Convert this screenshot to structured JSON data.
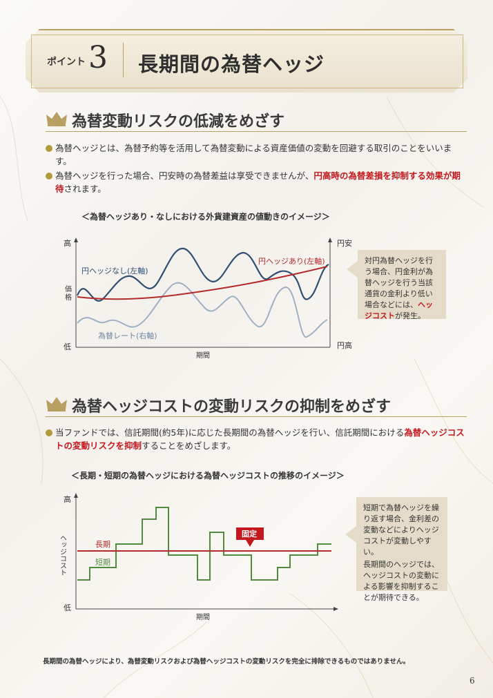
{
  "header": {
    "point_label": "ポイント",
    "point_number": "3",
    "title": "長期間の為替ヘッジ"
  },
  "section1": {
    "title": "為替変動リスクの低減をめざす",
    "bullet1": "為替ヘッジとは、為替予約等を活用して為替変動による資産価値の変動を回避する取引のことをいいます。",
    "bullet2_pre": "為替ヘッジを行った場合、円安時の為替差益は享受できませんが、",
    "bullet2_em": "円高時の為替差損を抑制する効果が期待",
    "bullet2_post": "されます。",
    "chart_caption": "＜為替ヘッジあり・なしにおける外貨建資産の値動きのイメージ＞",
    "callout_pre": "対円為替ヘッジを行う場合、円金利が為替ヘッジを行う当該通貨の金利より低い場合などには、",
    "callout_em": "ヘッジコスト",
    "callout_post": "が発生。"
  },
  "section2": {
    "title": "為替ヘッジコストの変動リスクの抑制をめざす",
    "bullet_pre": "当ファンドでは、信託期間(約5年)に応じた長期間の為替ヘッジを行い、信託期間における",
    "bullet_em": "為替ヘッジコストの変動リスクを抑制",
    "bullet_post": "することをめざします。",
    "chart_caption": "＜長期・短期の為替ヘッジにおける為替ヘッジコストの推移のイメージ＞",
    "callout_1": "短期で為替ヘッジを繰り返す場合、金利差の変動などによりヘッジコストが変動しやすい。",
    "callout_2": "長期間のヘッジでは、ヘッジコストの変動による影響を抑制することが期待できる。"
  },
  "chart_data": [
    {
      "type": "line",
      "title": "＜為替ヘッジあり・なしにおける外貨建資産の値動きのイメージ＞",
      "xlabel": "期間",
      "ylabel_left": "価格",
      "y_left_top": "高",
      "y_left_bottom": "低",
      "y_right_top": "円安",
      "y_right_bottom": "円高",
      "series": [
        {
          "name": "円ヘッジなし(左軸)",
          "color": "#2f4f73"
        },
        {
          "name": "円ヘッジあり(左軸)",
          "color": "#b22a2a"
        },
        {
          "name": "為替レート(右軸)",
          "color": "#9fb0c4"
        }
      ]
    },
    {
      "type": "line",
      "title": "＜長期・短期の為替ヘッジにおける為替ヘッジコストの推移のイメージ＞",
      "xlabel": "期間",
      "ylabel": "ヘッジコスト",
      "y_top": "高",
      "y_bottom": "低",
      "annotation": "固定",
      "series": [
        {
          "name": "長期",
          "color": "#b22a2a"
        },
        {
          "name": "短期",
          "color": "#4f8a3f"
        }
      ]
    }
  ],
  "footer": {
    "note": "長期間の為替ヘッジにより、為替変動リスクおよび為替ヘッジコストの変動リスクを完全に排除できるものではありません。",
    "page_number": "6"
  }
}
